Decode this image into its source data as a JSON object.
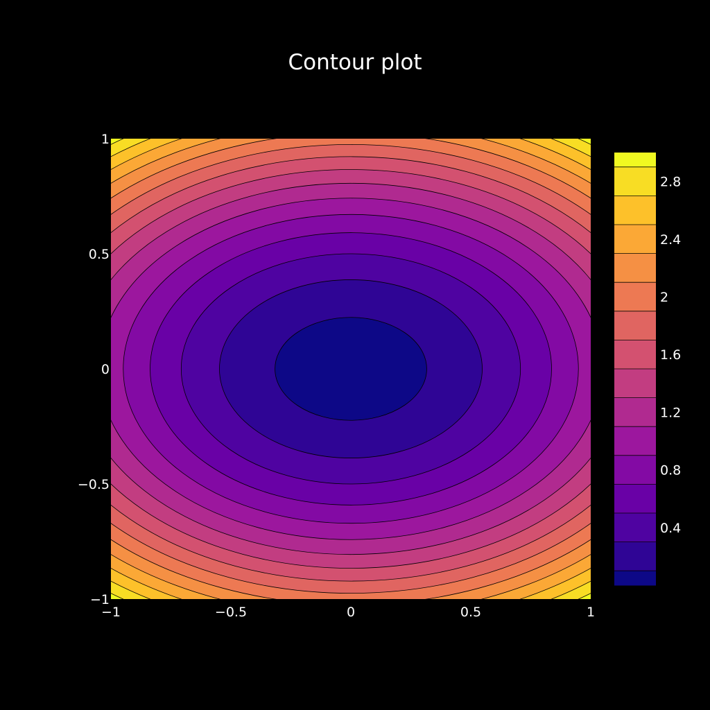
{
  "chart_data": {
    "type": "contour",
    "title": "Contour plot",
    "xlabel": "",
    "ylabel": "",
    "xlim": [
      -1,
      1
    ],
    "ylim": [
      -1,
      1
    ],
    "x_ticks": [
      -1,
      -0.5,
      0,
      0.5,
      1
    ],
    "x_tick_labels": [
      "−1",
      "−0.5",
      "0",
      "0.5",
      "1"
    ],
    "y_ticks": [
      -1,
      -0.5,
      0,
      0.5,
      1
    ],
    "y_tick_labels": [
      "−1",
      "−0.5",
      "0",
      "0.5",
      "1"
    ],
    "function": "z = x^2 + 2*y^2",
    "contour_start": 0.1,
    "contour_end": 2.9,
    "contour_step": 0.2,
    "zrange": [
      0,
      3
    ],
    "colorscale": [
      "#0d0887",
      "#46039f",
      "#7201a8",
      "#9c179e",
      "#bd3786",
      "#d8576b",
      "#ed7953",
      "#fb9f3a",
      "#fdca26",
      "#f0f921"
    ],
    "line_color": "#000000",
    "colorbar": {
      "ticks": [
        0.4,
        0.8,
        1.2,
        1.6,
        2,
        2.4,
        2.8
      ],
      "tick_labels": [
        "0.4",
        "0.8",
        "1.2",
        "1.6",
        "2",
        "2.4",
        "2.8"
      ]
    },
    "background": "#000000",
    "text_color": "#ffffff"
  }
}
